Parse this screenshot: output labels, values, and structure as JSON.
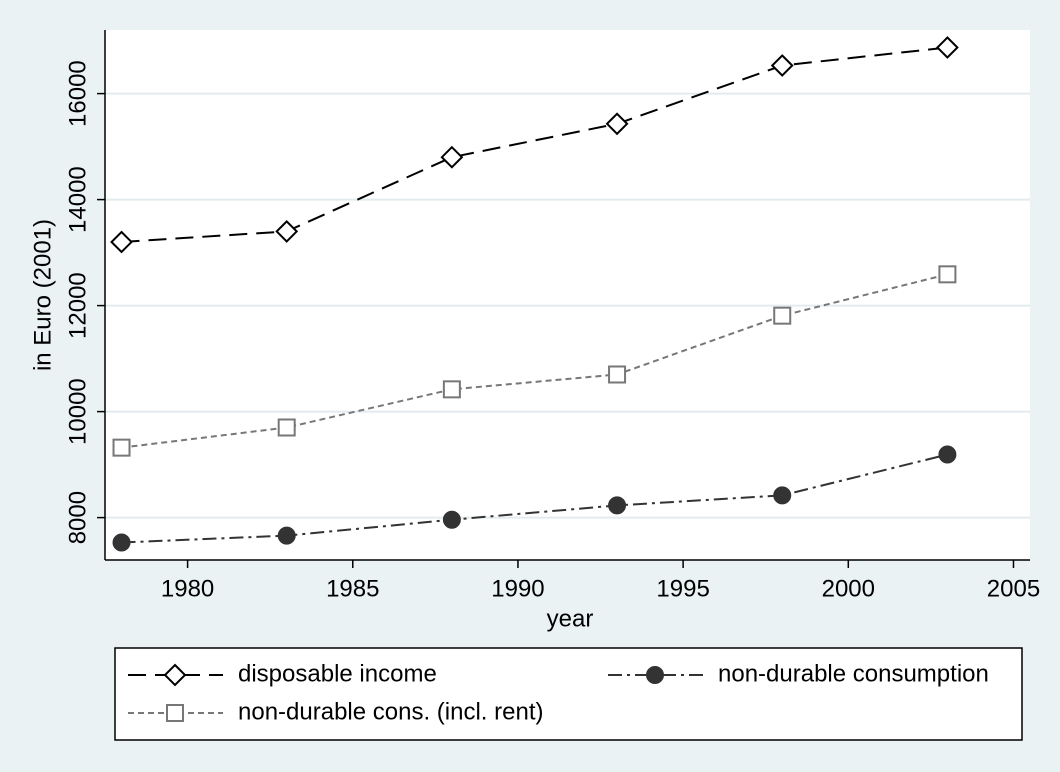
{
  "chart_data": {
    "type": "line",
    "x_label": "year",
    "y_label": "in Euro (2001)",
    "x": [
      1978,
      1983,
      1988,
      1993,
      1998,
      2003
    ],
    "series": [
      {
        "name": "disposable income",
        "color": "#000000",
        "line_style": "longdash",
        "marker": "diamond",
        "values": [
          13200,
          13400,
          14800,
          15430,
          16530,
          16870
        ]
      },
      {
        "name": "non-durable consumption",
        "color": "#333333",
        "line_style": "dashdot",
        "marker": "circle",
        "values": [
          7530,
          7660,
          7960,
          8230,
          8420,
          9190
        ]
      },
      {
        "name": "non-durable cons. (incl. rent)",
        "color": "#777777",
        "line_style": "shortdash",
        "marker": "square",
        "values": [
          9320,
          9700,
          10420,
          10700,
          11810,
          12590
        ]
      }
    ],
    "xlim": [
      1977.5,
      2005.5
    ],
    "xticks": [
      1980,
      1985,
      1990,
      1995,
      2000,
      2005
    ],
    "ylim": [
      7200,
      17200
    ],
    "yticks": [
      8000,
      10000,
      12000,
      14000,
      16000
    ],
    "grid": true
  }
}
